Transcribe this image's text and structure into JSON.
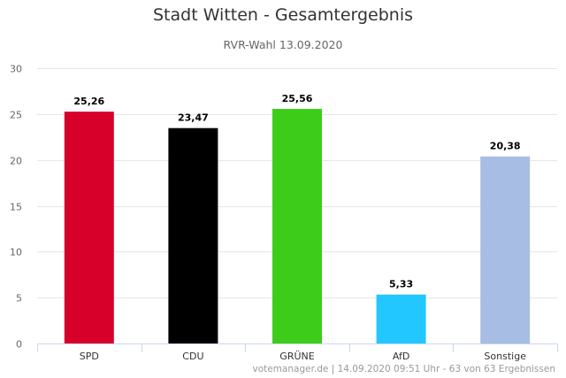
{
  "chart_data": {
    "type": "bar",
    "title": "Stadt Witten - Gesamtergebnis",
    "subtitle": "RVR-Wahl 13.09.2020",
    "categories": [
      "SPD",
      "CDU",
      "GRÜNE",
      "AfD",
      "Sonstige"
    ],
    "values": [
      25.26,
      23.47,
      25.56,
      5.33,
      20.38
    ],
    "value_labels": [
      "25,26",
      "23,47",
      "25,56",
      "5,33",
      "20,38"
    ],
    "colors": [
      "#d7002a",
      "#000000",
      "#3dcc1a",
      "#22c7ff",
      "#a8bde3"
    ],
    "ylim": [
      0,
      30
    ],
    "yticks": [
      "0",
      "5",
      "10",
      "15",
      "20",
      "25",
      "30"
    ],
    "grid": true,
    "xlabel": "",
    "ylabel": ""
  },
  "credits": "votemanager.de | 14.09.2020 09:51 Uhr - 63 von 63 Ergebnissen"
}
